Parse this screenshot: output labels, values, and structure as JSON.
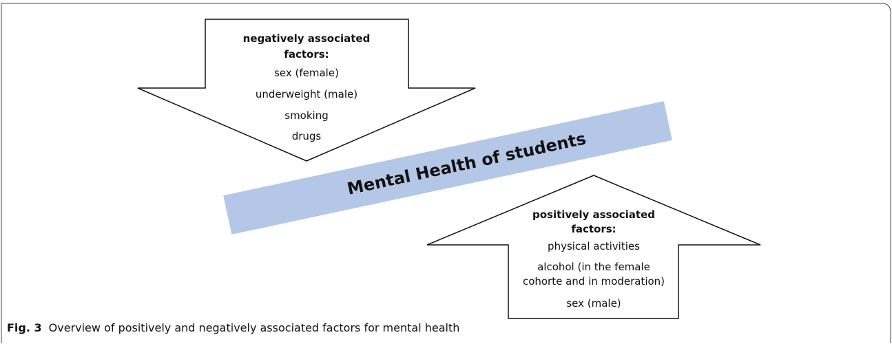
{
  "center_label": "Mental Health of students",
  "negative": {
    "heading": [
      "negatively associated",
      "factors:"
    ],
    "items": [
      "sex (female)",
      "underweight (male)",
      "smoking",
      "drugs"
    ]
  },
  "positive": {
    "heading": [
      "positively associated",
      "factors:"
    ],
    "items": [
      "physical activities",
      "alcohol (in the female",
      "cohorte and in moderation)",
      "sex (male)"
    ]
  },
  "caption": {
    "label": "Fig. 3",
    "text": "Overview of positively and negatively associated factors for mental health"
  }
}
